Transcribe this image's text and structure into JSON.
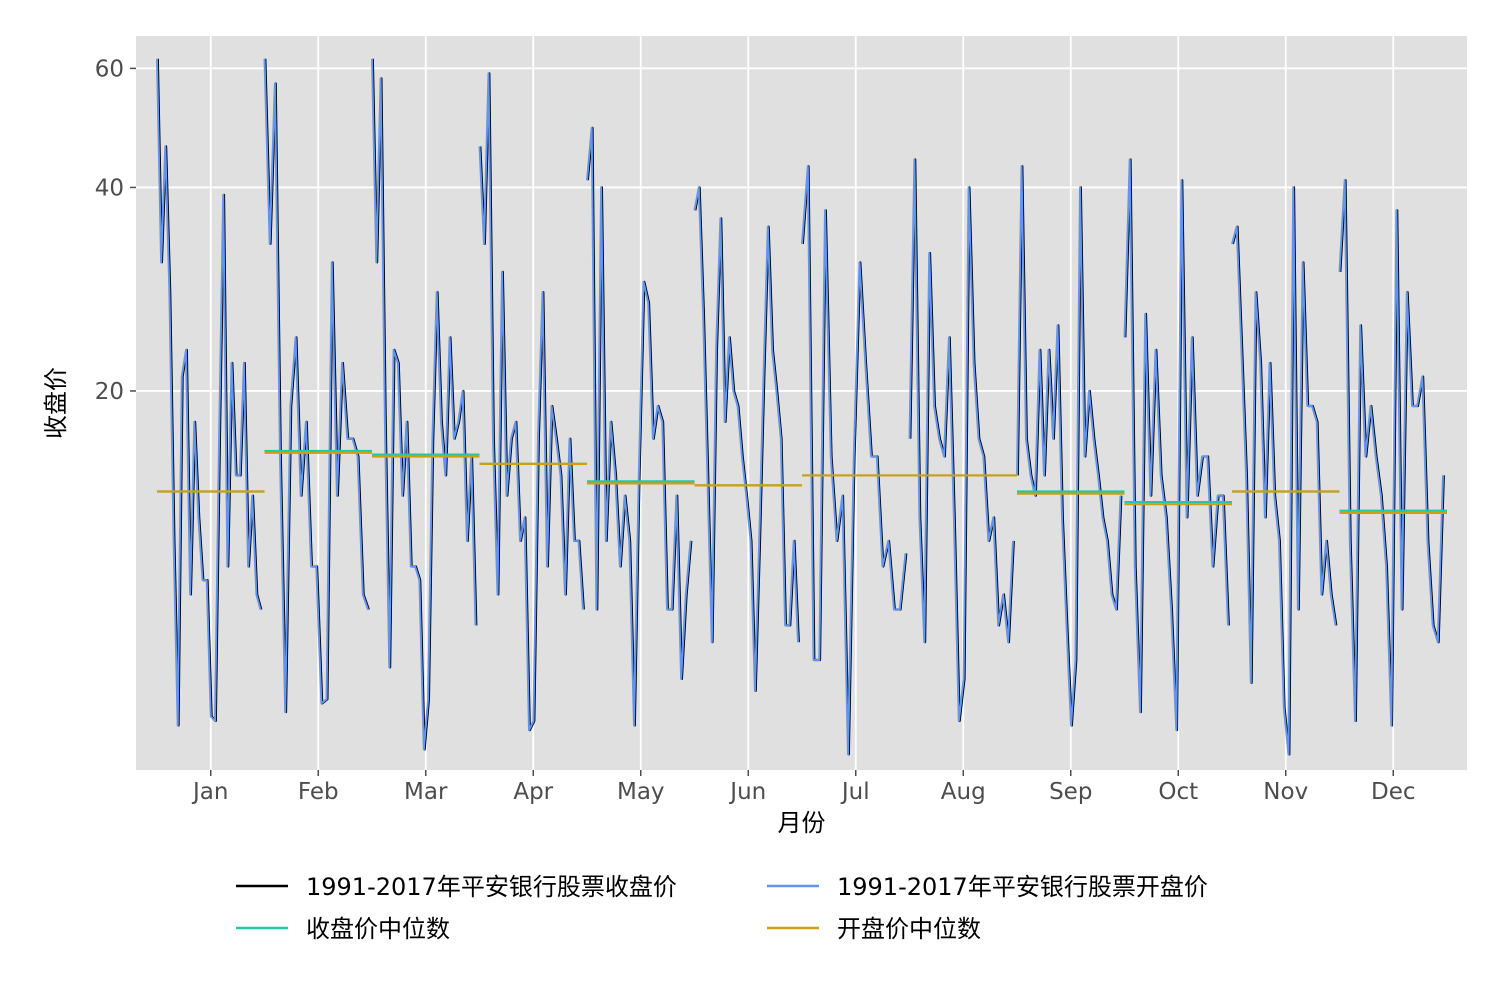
{
  "chart_data": {
    "type": "line",
    "xlabel": "月份",
    "ylabel": "收盘价",
    "y_scale": "log",
    "ylim": [
      5.5,
      67
    ],
    "y_ticks": [
      20,
      40,
      60
    ],
    "months": [
      "Jan",
      "Feb",
      "Mar",
      "Apr",
      "May",
      "Jun",
      "Jul",
      "Aug",
      "Sep",
      "Oct",
      "Nov",
      "Dec"
    ],
    "years": [
      1991,
      2017
    ],
    "grid": true,
    "legend_position": "bottom",
    "colors": {
      "close": "#000000",
      "open": "#6495ED",
      "close_median": "#20C9A6",
      "open_median": "#CDA00F",
      "panel_bg": "#E0E0E0",
      "grid": "#FFFFFF"
    },
    "series": [
      {
        "name": "1991-2017年平安银行股票收盘价",
        "role": "close",
        "values": [
          [
            62,
            31,
            46,
            28,
            12,
            6.4,
            21,
            23,
            10,
            18,
            13,
            10.5,
            10.5,
            6.6,
            6.5,
            17,
            39,
            11,
            22,
            15,
            15,
            22,
            11,
            14,
            10,
            9.5
          ],
          [
            62,
            33,
            57,
            16,
            6.7,
            19,
            24,
            14,
            18,
            11,
            11,
            6.9,
            7,
            31,
            14,
            22,
            17,
            17,
            16,
            10,
            9.5
          ],
          [
            62,
            31,
            58,
            18,
            7.8,
            23,
            22,
            14,
            18,
            11,
            11,
            10.5,
            5.9,
            7,
            17,
            28,
            18,
            15,
            24,
            17,
            18,
            20,
            12,
            16,
            9
          ],
          [
            46,
            33,
            59,
            17,
            10,
            30,
            14,
            17,
            18,
            12,
            13,
            6.3,
            6.5,
            17,
            28,
            11,
            19,
            17,
            15,
            10,
            17,
            12,
            12,
            9.5
          ],
          [
            41,
            49,
            9.5,
            40,
            12,
            18,
            15,
            11,
            14,
            12,
            6.4,
            15,
            29,
            27,
            17,
            19,
            18,
            9.5,
            9.5,
            14,
            7.5,
            10,
            12
          ],
          [
            37,
            40,
            26,
            15,
            8.5,
            23,
            36,
            18,
            24,
            20,
            19,
            16,
            14,
            12,
            7.2,
            12,
            21,
            35,
            23,
            20,
            17,
            9,
            9,
            12,
            8.5
          ],
          [
            33,
            43,
            8,
            8,
            37,
            16,
            12,
            14,
            5.8,
            16,
            31,
            22,
            16,
            16,
            11,
            12,
            9.5,
            9.5,
            11.5
          ],
          [
            17,
            44,
            13,
            8.5,
            32,
            19,
            17,
            16,
            24,
            13,
            6.5,
            7.5,
            40,
            22,
            17,
            16,
            12,
            13,
            9,
            10,
            8.5,
            12
          ],
          [
            15,
            43,
            17,
            15,
            14,
            23,
            15,
            23,
            17,
            25,
            13,
            9,
            6.4,
            8,
            40,
            16,
            20,
            17,
            15,
            13,
            12,
            10,
            9.5,
            14
          ],
          [
            24,
            44,
            11,
            6.7,
            26,
            14,
            23,
            15,
            13,
            9.5,
            6.3,
            41,
            13,
            24,
            14,
            16,
            16,
            11,
            14,
            14,
            9
          ],
          [
            33,
            35,
            23,
            15,
            7.4,
            28,
            22,
            13,
            22,
            14,
            12,
            6.8,
            5.8,
            40,
            9.5,
            31,
            19,
            19,
            18,
            10,
            12,
            10,
            9
          ],
          [
            30,
            41,
            12,
            6.5,
            25,
            16,
            19,
            16,
            14,
            11,
            6.4,
            37,
            9.5,
            28,
            19,
            19,
            21,
            12,
            9,
            8.5,
            15
          ]
        ]
      },
      {
        "name": "1991-2017年平安银行股票开盘价",
        "role": "open",
        "values": [
          [
            62,
            31,
            46,
            28,
            12,
            6.4,
            21,
            23,
            10,
            18,
            13,
            10.5,
            10.5,
            6.6,
            6.5,
            17,
            39,
            11,
            22,
            15,
            15,
            22,
            11,
            14,
            10,
            9.5
          ],
          [
            62,
            33,
            57,
            16,
            6.7,
            19,
            24,
            14,
            18,
            11,
            11,
            6.9,
            7,
            31,
            14,
            22,
            17,
            17,
            16,
            10,
            9.5
          ],
          [
            62,
            31,
            58,
            18,
            7.8,
            23,
            22,
            14,
            18,
            11,
            11,
            10.5,
            5.9,
            7,
            17,
            28,
            18,
            15,
            24,
            17,
            18,
            20,
            12,
            16,
            9
          ],
          [
            46,
            33,
            59,
            17,
            10,
            30,
            14,
            17,
            18,
            12,
            13,
            6.3,
            6.5,
            17,
            28,
            11,
            19,
            17,
            15,
            10,
            17,
            12,
            12,
            9.5
          ],
          [
            41,
            49,
            9.5,
            40,
            12,
            18,
            15,
            11,
            14,
            12,
            6.4,
            15,
            29,
            27,
            17,
            19,
            18,
            9.5,
            9.5,
            14,
            7.5,
            10,
            12
          ],
          [
            37,
            40,
            26,
            15,
            8.5,
            23,
            36,
            18,
            24,
            20,
            19,
            16,
            14,
            12,
            7.2,
            12,
            21,
            35,
            23,
            20,
            17,
            9,
            9,
            12,
            8.5
          ],
          [
            33,
            43,
            8,
            8,
            37,
            16,
            12,
            14,
            5.8,
            16,
            31,
            22,
            16,
            16,
            11,
            12,
            9.5,
            9.5,
            11.5
          ],
          [
            17,
            44,
            13,
            8.5,
            32,
            19,
            17,
            16,
            24,
            13,
            6.5,
            7.5,
            40,
            22,
            17,
            16,
            12,
            13,
            9,
            10,
            8.5,
            12
          ],
          [
            15,
            43,
            17,
            15,
            14,
            23,
            15,
            23,
            17,
            25,
            13,
            9,
            6.4,
            8,
            40,
            16,
            20,
            17,
            15,
            13,
            12,
            10,
            9.5,
            14
          ],
          [
            24,
            44,
            11,
            6.7,
            26,
            14,
            23,
            15,
            13,
            9.5,
            6.3,
            41,
            13,
            24,
            14,
            16,
            16,
            11,
            14,
            14,
            9
          ],
          [
            33,
            35,
            23,
            15,
            7.4,
            28,
            22,
            13,
            22,
            14,
            12,
            6.8,
            5.8,
            40,
            9.5,
            31,
            19,
            19,
            18,
            10,
            12,
            10,
            9
          ],
          [
            30,
            41,
            12,
            6.5,
            25,
            16,
            19,
            16,
            14,
            11,
            6.4,
            37,
            9.5,
            28,
            19,
            19,
            21,
            12,
            9,
            8.5,
            15
          ]
        ]
      },
      {
        "name": "收盘价中位数",
        "role": "close_median",
        "values": [
          14.2,
          16.3,
          16.1,
          15.6,
          14.7,
          14.5,
          15.0,
          15.0,
          14.2,
          13.7,
          14.2,
          13.3
        ]
      },
      {
        "name": "开盘价中位数",
        "role": "open_median",
        "values": [
          14.2,
          16.2,
          16.0,
          15.6,
          14.6,
          14.5,
          15.0,
          15.0,
          14.1,
          13.6,
          14.2,
          13.2
        ]
      }
    ]
  }
}
